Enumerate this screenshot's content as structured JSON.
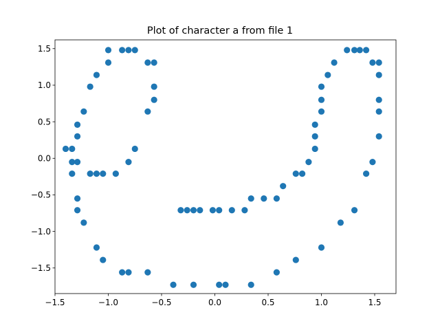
{
  "chart_data": {
    "type": "scatter",
    "title": "Plot of character a from file 1",
    "xlabel": "",
    "ylabel": "",
    "xlim": [
      -1.5,
      1.7
    ],
    "ylim": [
      -1.85,
      1.62
    ],
    "x_ticks": [
      -1.5,
      -1.0,
      -0.5,
      0.0,
      0.5,
      1.0,
      1.5
    ],
    "x_tick_labels": [
      "−1.5",
      "−1.0",
      "−0.5",
      "0.0",
      "0.5",
      "1.0",
      "1.5"
    ],
    "y_ticks": [
      -1.5,
      -1.0,
      -0.5,
      0.0,
      0.5,
      1.0,
      1.5
    ],
    "y_tick_labels": [
      "−1.5",
      "−1.0",
      "−0.5",
      "0.0",
      "0.5",
      "1.0",
      "1.5"
    ],
    "grid": false,
    "legend": "none",
    "marker_color": "#1f77b4",
    "series": [
      {
        "points": [
          [
            -1.4,
            0.13
          ],
          [
            -1.34,
            0.13
          ],
          [
            -1.34,
            -0.05
          ],
          [
            -1.29,
            -0.05
          ],
          [
            -1.34,
            -0.21
          ],
          [
            -1.29,
            0.3
          ],
          [
            -1.29,
            0.46
          ],
          [
            -1.23,
            0.64
          ],
          [
            -1.17,
            0.98
          ],
          [
            -1.11,
            1.14
          ],
          [
            -1.0,
            1.31
          ],
          [
            -1.0,
            1.48
          ],
          [
            -0.87,
            1.48
          ],
          [
            -0.81,
            1.48
          ],
          [
            -0.75,
            1.48
          ],
          [
            -0.63,
            1.31
          ],
          [
            -0.57,
            1.31
          ],
          [
            -0.57,
            0.98
          ],
          [
            -0.57,
            0.8
          ],
          [
            -0.63,
            0.64
          ],
          [
            -0.75,
            0.13
          ],
          [
            -0.81,
            -0.05
          ],
          [
            -0.93,
            -0.21
          ],
          [
            -1.05,
            -0.21
          ],
          [
            -1.11,
            -0.21
          ],
          [
            -1.17,
            -0.21
          ],
          [
            -1.29,
            -0.55
          ],
          [
            -1.29,
            -0.71
          ],
          [
            -1.23,
            -0.88
          ],
          [
            -1.11,
            -1.22
          ],
          [
            -1.05,
            -1.39
          ],
          [
            -0.87,
            -1.56
          ],
          [
            -0.81,
            -1.56
          ],
          [
            -0.63,
            -1.56
          ],
          [
            -0.39,
            -1.73
          ],
          [
            -0.2,
            -1.73
          ],
          [
            0.04,
            -1.73
          ],
          [
            0.1,
            -1.73
          ],
          [
            0.34,
            -1.73
          ],
          [
            0.58,
            -1.56
          ],
          [
            0.76,
            -1.39
          ],
          [
            1.0,
            -1.22
          ],
          [
            1.18,
            -0.88
          ],
          [
            1.31,
            -0.71
          ],
          [
            1.42,
            -0.21
          ],
          [
            1.48,
            -0.05
          ],
          [
            1.54,
            0.3
          ],
          [
            1.54,
            0.64
          ],
          [
            1.54,
            0.8
          ],
          [
            1.54,
            1.14
          ],
          [
            1.54,
            1.31
          ],
          [
            1.48,
            1.31
          ],
          [
            1.42,
            1.48
          ],
          [
            1.36,
            1.48
          ],
          [
            1.31,
            1.48
          ],
          [
            1.24,
            1.48
          ],
          [
            1.12,
            1.31
          ],
          [
            1.06,
            1.14
          ],
          [
            1.0,
            0.98
          ],
          [
            1.0,
            0.8
          ],
          [
            1.0,
            0.64
          ],
          [
            0.94,
            0.46
          ],
          [
            0.94,
            0.3
          ],
          [
            0.94,
            0.13
          ],
          [
            0.88,
            -0.05
          ],
          [
            0.82,
            -0.21
          ],
          [
            0.76,
            -0.21
          ],
          [
            0.64,
            -0.38
          ],
          [
            0.58,
            -0.55
          ],
          [
            0.46,
            -0.55
          ],
          [
            0.34,
            -0.55
          ],
          [
            0.28,
            -0.71
          ],
          [
            0.16,
            -0.71
          ],
          [
            0.04,
            -0.71
          ],
          [
            -0.02,
            -0.71
          ],
          [
            -0.14,
            -0.71
          ],
          [
            -0.2,
            -0.71
          ],
          [
            -0.26,
            -0.71
          ],
          [
            -0.32,
            -0.71
          ]
        ]
      }
    ]
  }
}
